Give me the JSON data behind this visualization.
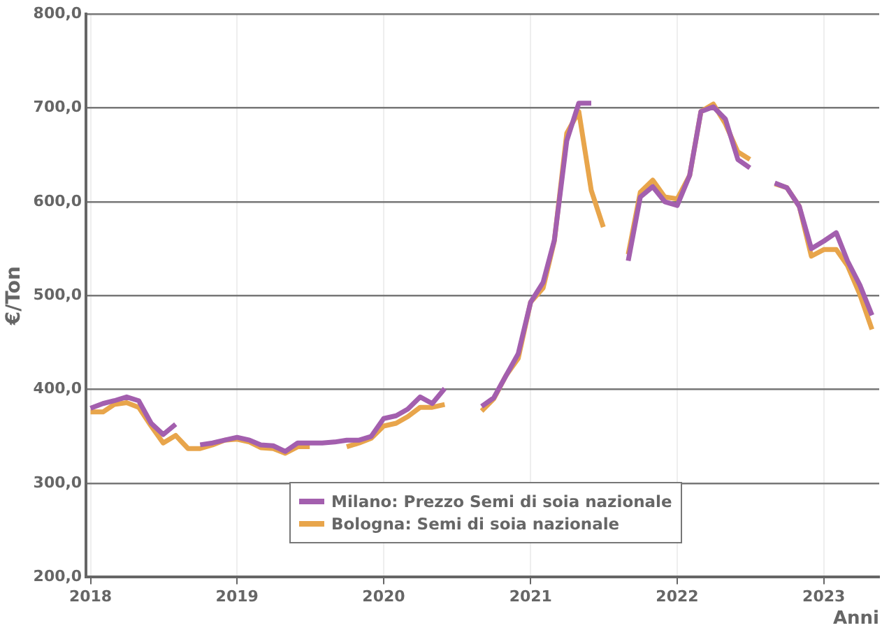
{
  "chart_data": {
    "type": "line",
    "xlabel": "Anni",
    "ylabel": "€/Ton",
    "x": [
      "2018-01",
      "2018-02",
      "2018-03",
      "2018-04",
      "2018-05",
      "2018-06",
      "2018-07",
      "2018-08",
      "2018-09",
      "2018-10",
      "2018-11",
      "2018-12",
      "2019-01",
      "2019-02",
      "2019-03",
      "2019-04",
      "2019-05",
      "2019-06",
      "2019-07",
      "2019-08",
      "2019-09",
      "2019-10",
      "2019-11",
      "2019-12",
      "2020-01",
      "2020-02",
      "2020-03",
      "2020-04",
      "2020-05",
      "2020-06",
      "2020-07",
      "2020-08",
      "2020-09",
      "2020-10",
      "2020-11",
      "2020-12",
      "2021-01",
      "2021-02",
      "2021-03",
      "2021-04",
      "2021-05",
      "2021-06",
      "2021-07",
      "2021-08",
      "2021-09",
      "2021-10",
      "2021-11",
      "2021-12",
      "2022-01",
      "2022-02",
      "2022-03",
      "2022-04",
      "2022-05",
      "2022-06",
      "2022-07",
      "2022-08",
      "2022-09",
      "2022-10",
      "2022-11",
      "2022-12",
      "2023-01",
      "2023-02",
      "2023-03",
      "2023-04",
      "2023-05"
    ],
    "series": [
      {
        "name": "Milano: Prezzo Semi di soia nazionale",
        "color": "#a35fae",
        "values": [
          380,
          385,
          388,
          392,
          388,
          364,
          352,
          363,
          null,
          341,
          343,
          346,
          349,
          346,
          341,
          340,
          334,
          343,
          343,
          343,
          344,
          346,
          346,
          350,
          369,
          372,
          379,
          392,
          385,
          401,
          null,
          null,
          382,
          391,
          415,
          438,
          493,
          514,
          559,
          665,
          705,
          705,
          null,
          null,
          537,
          605,
          616,
          600,
          596,
          628,
          696,
          701,
          688,
          645,
          636,
          null,
          620,
          615,
          595,
          550,
          558,
          567,
          537,
          511,
          479
        ]
      },
      {
        "name": "Bologna: Semi di soia nazionale",
        "color": "#e8a54b",
        "values": [
          376,
          376,
          384,
          386,
          381,
          361,
          343,
          351,
          337,
          337,
          341,
          346,
          347,
          344,
          338,
          337,
          332,
          339,
          339,
          null,
          null,
          339,
          343,
          348,
          361,
          364,
          371,
          381,
          381,
          384,
          null,
          null,
          377,
          390,
          415,
          433,
          493,
          508,
          558,
          673,
          696,
          612,
          573,
          null,
          544,
          610,
          623,
          605,
          603,
          628,
          696,
          704,
          683,
          653,
          645,
          null,
          619,
          615,
          595,
          542,
          549,
          549,
          532,
          501,
          464
        ]
      }
    ],
    "xlim": [
      "2017-12-21",
      "2023-05-19"
    ],
    "xticks": [
      {
        "value": "2018-01-01",
        "label": "2018"
      },
      {
        "value": "2019-01-01",
        "label": "2019"
      },
      {
        "value": "2020-01-01",
        "label": "2020"
      },
      {
        "value": "2021-01-01",
        "label": "2021"
      },
      {
        "value": "2022-01-01",
        "label": "2022"
      },
      {
        "value": "2023-01-01",
        "label": "2023"
      }
    ],
    "ylim": [
      200,
      800
    ],
    "yticks": [
      {
        "value": 200,
        "label": "200,0"
      },
      {
        "value": 300,
        "label": "300,0"
      },
      {
        "value": 400,
        "label": "400,0"
      },
      {
        "value": 500,
        "label": "500,0"
      },
      {
        "value": 600,
        "label": "600,0"
      },
      {
        "value": 700,
        "label": "700,0"
      },
      {
        "value": 800,
        "label": "800,0"
      }
    ],
    "grid": true,
    "legend": "bottom",
    "marker": "none",
    "line_style": "solid"
  }
}
